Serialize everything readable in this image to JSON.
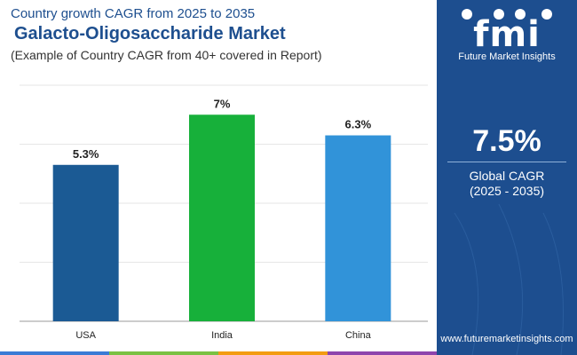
{
  "header": {
    "title": "Country growth CAGR from 2025 to 2035",
    "market": "Galacto-Oligosaccharide Market",
    "subtitle": "(Example of Country CAGR from 40+ covered in Report)"
  },
  "chart_data": {
    "type": "bar",
    "title": "Galacto-Oligosaccharide Market",
    "categories": [
      "USA",
      "India",
      "China"
    ],
    "values": [
      5.3,
      7.0,
      6.3
    ],
    "value_labels": [
      "5.3%",
      "7%",
      "6.3%"
    ],
    "colors": [
      "#1b5a94",
      "#17b03a",
      "#3193d9"
    ],
    "xlabel": "",
    "ylabel": "",
    "ylim": [
      0,
      8
    ],
    "grid": true
  },
  "sidebar": {
    "logo_text": "fmi",
    "brand": "Future Market Insights",
    "cagr_value": "7.5%",
    "cagr_label": "Global CAGR",
    "cagr_range": "(2025 - 2035)",
    "website": "www.futuremarketinsights.com"
  },
  "colors": {
    "panel": "#1d4e8f",
    "heading": "#1e4f8f",
    "bar_strip": [
      "#3a7bd5",
      "#7ac143",
      "#f39c12",
      "#8e44ad"
    ]
  }
}
